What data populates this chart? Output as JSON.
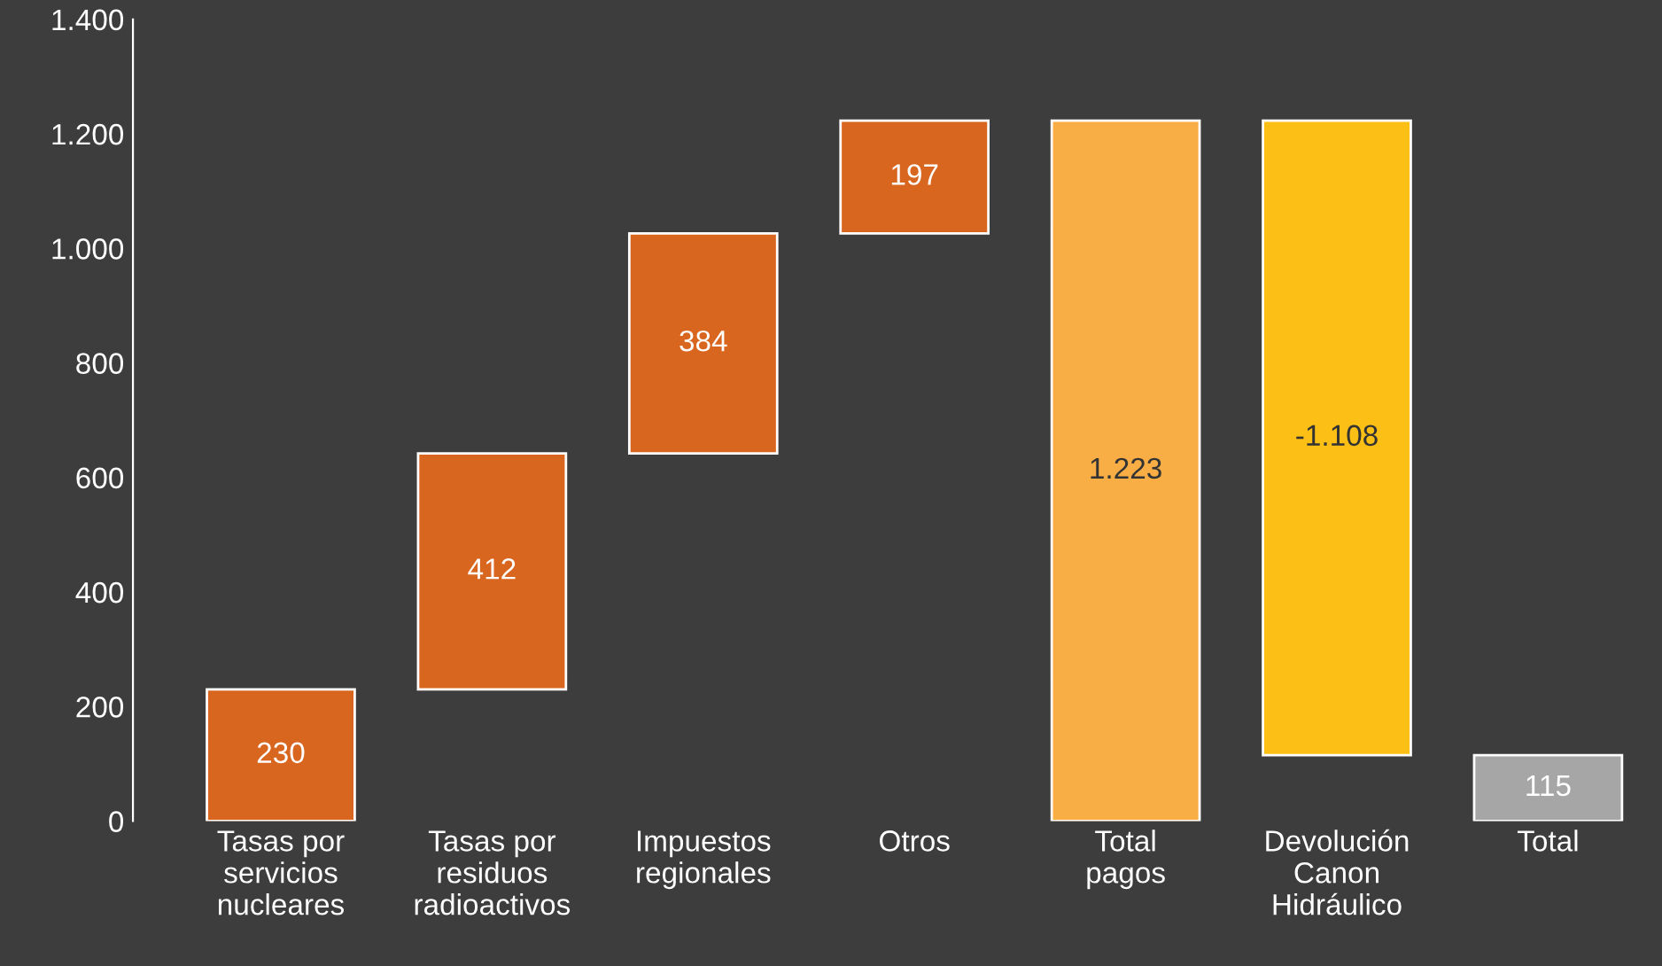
{
  "chart_data": {
    "type": "bar",
    "categories": [
      "Tasas por\nservicios\nnucleares",
      "Tasas por\nresiduos\nradioactivos",
      "Impuestos\nregionales",
      "Otros",
      "Total\npagos",
      "Devolución\nCanon\nHidráulico",
      "Total"
    ],
    "values": [
      230,
      412,
      384,
      197,
      1223,
      -1108,
      115
    ],
    "base": [
      0,
      230,
      642,
      1026,
      0,
      1223,
      0
    ],
    "colors": [
      "#d9661f",
      "#d9661f",
      "#d9661f",
      "#d9661f",
      "#f8ad45",
      "#fbbf15",
      "#a6a6a6"
    ],
    "value_labels": [
      "230",
      "412",
      "384",
      "197",
      "1.223",
      "-1.108",
      "115"
    ],
    "ylim": [
      0,
      1400
    ],
    "yticks": [
      0,
      200,
      400,
      600,
      800,
      {
        "value": 1000,
        "label": "1.000"
      },
      {
        "value": 1200,
        "label": "1.200"
      },
      {
        "value": 1400,
        "label": "1.400"
      }
    ],
    "grid": false
  }
}
